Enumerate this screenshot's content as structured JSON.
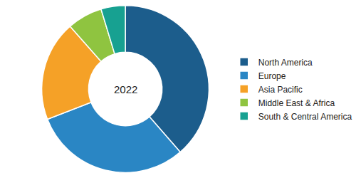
{
  "chart_data": {
    "type": "pie",
    "categories": [
      "North America",
      "Europe",
      "Asia Pacific",
      "Middle East & Africa",
      "South & Central America"
    ],
    "values": [
      38.6,
      30.5,
      19.4,
      6.8,
      4.7
    ],
    "colors": [
      "#1c5d8c",
      "#2a86c4",
      "#f5a127",
      "#8fc440",
      "#17a191"
    ],
    "annotations": [
      "2022"
    ],
    "legend": "right"
  }
}
